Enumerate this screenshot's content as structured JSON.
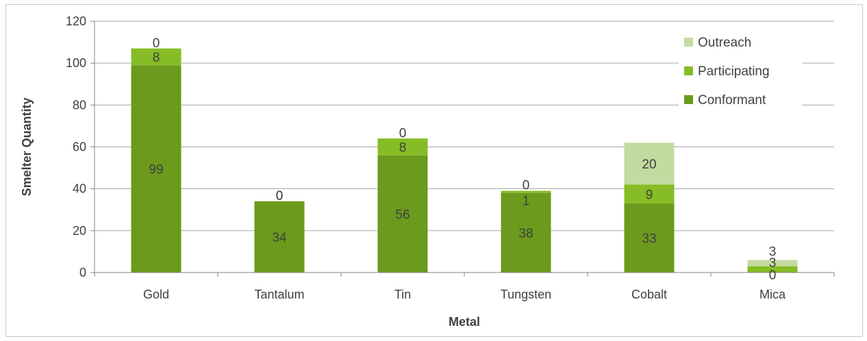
{
  "chart_data": {
    "type": "bar",
    "stacked": true,
    "categories": [
      "Gold",
      "Tantalum",
      "Tin",
      "Tungsten",
      "Cobalt",
      "Mica"
    ],
    "series": [
      {
        "name": "Conformant",
        "values": [
          99,
          34,
          56,
          38,
          33,
          0
        ],
        "color": "#6b9a1c"
      },
      {
        "name": "Participating",
        "values": [
          8,
          0,
          8,
          1,
          9,
          3
        ],
        "color": "#86bc25"
      },
      {
        "name": "Outreach",
        "values": [
          0,
          0,
          0,
          0,
          20,
          3
        ],
        "color": "#c3dba1"
      }
    ],
    "xlabel": "Metal",
    "ylabel": "Smelter Quantity",
    "ylim": [
      0,
      120
    ],
    "yticks": [
      0,
      20,
      40,
      60,
      80,
      100,
      120
    ],
    "grid": true,
    "legend": "top-right",
    "data_labels": true
  }
}
